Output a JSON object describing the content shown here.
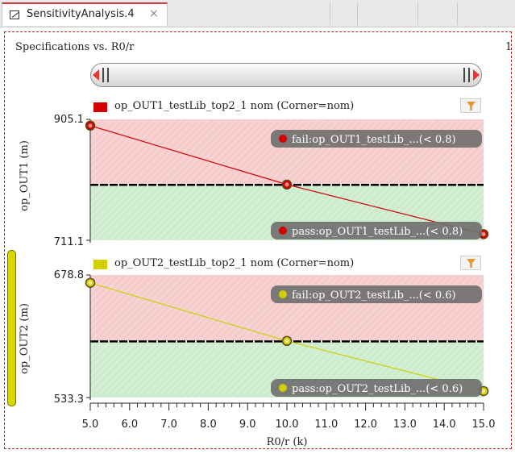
{
  "tab": {
    "label": "SensitivityAnalysis.4",
    "close": "×"
  },
  "page": {
    "title": "Specifications vs. R0/r",
    "number": "1"
  },
  "colors": {
    "fail_fill": "#f6cccc",
    "pass_fill": "#cdeccd",
    "series1": "#d40000",
    "series2": "#d0d000",
    "threshold": "#000000"
  },
  "chart_data": [
    {
      "type": "line",
      "legend": "op_OUT1_testLib_top2_1 nom (Corner=nom)",
      "ylabel": "op_OUT1 (m)",
      "ytick_top": "905.1",
      "ytick_bottom": "711.1",
      "ylim": [
        711.1,
        905.1
      ],
      "x": [
        5.0,
        10.0,
        15.0
      ],
      "values": [
        895.0,
        800.5,
        721.0
      ],
      "threshold": 800,
      "fail_label": "fail:op_OUT1_testLib_...(< 0.8)",
      "pass_label": "pass:op_OUT1_testLib_...(< 0.8)",
      "color": "#d40000"
    },
    {
      "type": "line",
      "legend": "op_OUT2_testLib_top2_1 nom (Corner=nom)",
      "ylabel": "op_OUT2 (m)",
      "ytick_top": "678.8",
      "ytick_bottom": "533.3",
      "ylim": [
        533.3,
        678.8
      ],
      "x": [
        5.0,
        10.0,
        15.0
      ],
      "values": [
        669.5,
        600.5,
        541.0
      ],
      "threshold": 600,
      "fail_label": "fail:op_OUT2_testLib_...(< 0.6)",
      "pass_label": "pass:op_OUT2_testLib_...(< 0.6)",
      "color": "#d0d000"
    }
  ],
  "x_axis": {
    "ticks": [
      "5.0",
      "6.0",
      "7.0",
      "8.0",
      "9.0",
      "10.0",
      "11.0",
      "12.0",
      "13.0",
      "14.0",
      "15.0"
    ],
    "xlim": [
      5.0,
      15.0
    ],
    "label": "R0/r (k)"
  }
}
